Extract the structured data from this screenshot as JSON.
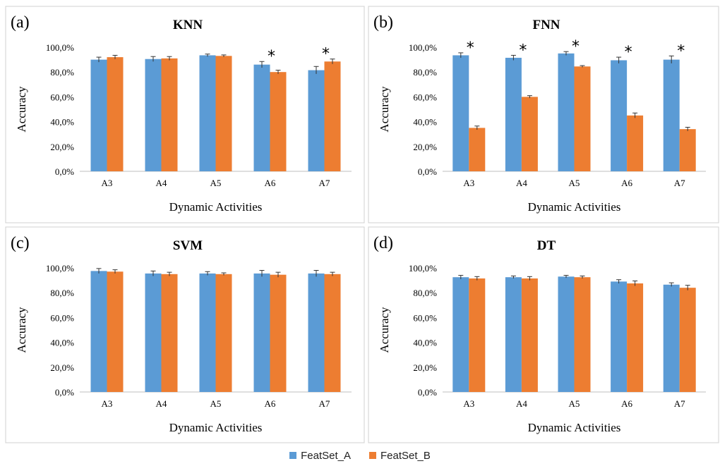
{
  "chart_data": [
    {
      "panel_label": "(a)",
      "type": "bar",
      "title": "KNN",
      "xlabel": "Dynamic Activities",
      "ylabel": "Accuracy",
      "ylim": [
        0,
        100
      ],
      "y_ticks": [
        "0,0%",
        "20,0%",
        "40,0%",
        "60,0%",
        "80,0%",
        "100,0%"
      ],
      "categories": [
        "A3",
        "A4",
        "A5",
        "A6",
        "A7"
      ],
      "series": [
        {
          "name": "FeatSet_A",
          "values": [
            90,
            90.5,
            93.5,
            86,
            81.5
          ],
          "errors": [
            2,
            2,
            1,
            2.5,
            3
          ]
        },
        {
          "name": "FeatSet_B",
          "values": [
            92,
            91,
            93,
            80,
            88.5
          ],
          "errors": [
            1.5,
            1.5,
            0.8,
            1.5,
            2
          ]
        }
      ],
      "significance": [
        "",
        "",
        "",
        "*",
        "*"
      ]
    },
    {
      "panel_label": "(b)",
      "type": "bar",
      "title": "FNN",
      "xlabel": "Dynamic Activities",
      "ylabel": "Accuracy",
      "ylim": [
        0,
        100
      ],
      "y_ticks": [
        "0,0%",
        "20,0%",
        "40,0%",
        "60,0%",
        "80,0%",
        "100,0%"
      ],
      "categories": [
        "A3",
        "A4",
        "A5",
        "A6",
        "A7"
      ],
      "series": [
        {
          "name": "FeatSet_A",
          "values": [
            93.5,
            91.5,
            95,
            89.5,
            90
          ],
          "errors": [
            2,
            2,
            1.5,
            2.5,
            3
          ]
        },
        {
          "name": "FeatSet_B",
          "values": [
            35,
            60,
            84.5,
            45,
            34
          ],
          "errors": [
            1.5,
            1,
            0.7,
            2,
            1.5
          ]
        }
      ],
      "significance": [
        "*",
        "*",
        "*",
        "*",
        "*"
      ]
    },
    {
      "panel_label": "(c)",
      "type": "bar",
      "title": "SVM",
      "xlabel": "Dynamic Activities",
      "ylabel": "Accuracy",
      "ylim": [
        0,
        100
      ],
      "y_ticks": [
        "0,0%",
        "20,0%",
        "40,0%",
        "60,0%",
        "80,0%",
        "100,0%"
      ],
      "categories": [
        "A3",
        "A4",
        "A5",
        "A6",
        "A7"
      ],
      "series": [
        {
          "name": "FeatSet_A",
          "values": [
            97.5,
            95.5,
            95.5,
            95.5,
            95.5
          ],
          "errors": [
            2,
            2,
            1.5,
            2.5,
            2.5
          ]
        },
        {
          "name": "FeatSet_B",
          "values": [
            97,
            95,
            95,
            94.5,
            95
          ],
          "errors": [
            1.5,
            1.5,
            1,
            2,
            1.5
          ]
        }
      ],
      "significance": [
        "",
        "",
        "",
        "",
        ""
      ]
    },
    {
      "panel_label": "(d)",
      "type": "bar",
      "title": "DT",
      "xlabel": "Dynamic Activities",
      "ylabel": "Accuracy",
      "ylim": [
        0,
        100
      ],
      "y_ticks": [
        "0,0%",
        "20,0%",
        "40,0%",
        "60,0%",
        "80,0%",
        "100,0%"
      ],
      "categories": [
        "A3",
        "A4",
        "A5",
        "A6",
        "A7"
      ],
      "series": [
        {
          "name": "FeatSet_A",
          "values": [
            92.5,
            92.5,
            93,
            89,
            86.5
          ],
          "errors": [
            1.5,
            1,
            1,
            1.5,
            1.5
          ]
        },
        {
          "name": "FeatSet_B",
          "values": [
            91.5,
            91.5,
            92.5,
            87.5,
            84
          ],
          "errors": [
            1.5,
            1.5,
            1,
            2,
            2
          ]
        }
      ],
      "significance": [
        "",
        "",
        "",
        "",
        ""
      ]
    }
  ],
  "legend": {
    "items": [
      {
        "label": "FeatSet_A",
        "color": "#5B9BD5"
      },
      {
        "label": "FeatSet_B",
        "color": "#ED7D31"
      }
    ]
  },
  "colors": {
    "series_a": "#5B9BD5",
    "series_b": "#ED7D31",
    "error_bar": "#333333",
    "axis": "#bfbfbf",
    "panel_border": "#d0d0d0"
  }
}
